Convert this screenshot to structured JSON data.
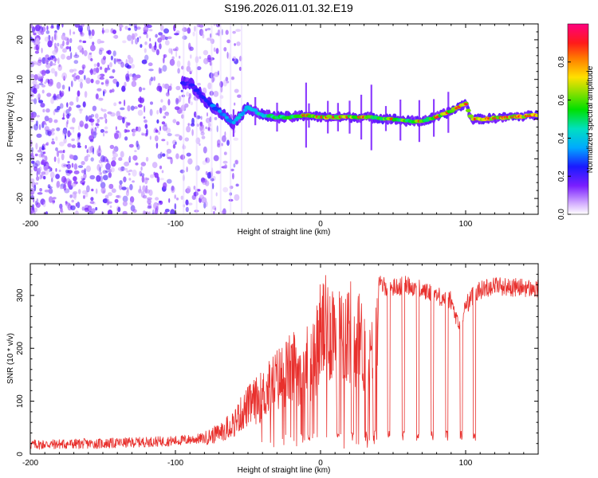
{
  "figure_title": "S196.2026.011.01.32.E19",
  "chart_data": [
    {
      "type": "heatmap",
      "title": "S196.2026.011.01.32.E19",
      "xlabel": "Height of straight line (km)",
      "ylabel": "Frequency (Hz)",
      "xlim": [
        -200,
        150
      ],
      "ylim": [
        -24,
        24
      ],
      "xticks": [
        -200,
        -100,
        0,
        100
      ],
      "yticks": [
        -20,
        -10,
        0,
        10,
        20
      ],
      "colorbar": {
        "label": "Normalized spectral amplitude",
        "range": [
          0,
          1
        ],
        "ticks": [
          0.0,
          0.2,
          0.4,
          0.6,
          0.8
        ],
        "tick_labels": [
          "0.0",
          "0.2",
          "0.4",
          "0.6",
          "0.8"
        ]
      },
      "trace": {
        "x": [
          -90,
          -80,
          -70,
          -60,
          -50,
          -40,
          -30,
          -20,
          -10,
          0,
          10,
          20,
          30,
          40,
          50,
          60,
          70,
          80,
          90,
          100,
          104,
          110,
          130,
          150
        ],
        "freq": [
          9,
          5,
          2,
          -1,
          3,
          1,
          0.5,
          0.5,
          1,
          0.5,
          0.5,
          0.5,
          0.5,
          0.3,
          0,
          -0.5,
          -0.5,
          0.5,
          2,
          4,
          0,
          0,
          0.5,
          1
        ],
        "amplitude": [
          0.3,
          0.35,
          0.45,
          0.5,
          0.55,
          0.6,
          0.7,
          0.75,
          0.8,
          0.85,
          0.85,
          0.85,
          0.85,
          0.8,
          0.8,
          0.8,
          0.8,
          0.85,
          0.85,
          0.9,
          0.95,
          0.95,
          0.95,
          0.95
        ]
      },
      "noise_region": {
        "x_range": [
          -200,
          -55
        ],
        "freq_range": [
          -24,
          24
        ],
        "amplitude": 0.15
      }
    },
    {
      "type": "line",
      "xlabel": "Height of straight line (km)",
      "ylabel": "SNR (10 * v/v)",
      "xlim": [
        -200,
        150
      ],
      "ylim": [
        0,
        360
      ],
      "xticks": [
        -200,
        -100,
        0,
        100
      ],
      "yticks": [
        0,
        100,
        200,
        300
      ],
      "series": [
        {
          "name": "SNR",
          "color": "#e8302d",
          "x": [
            -200,
            -150,
            -100,
            -80,
            -70,
            -60,
            -50,
            -40,
            -30,
            -20,
            -10,
            -5,
            0,
            10,
            20,
            25,
            30,
            35,
            40,
            50,
            60,
            70,
            80,
            90,
            95,
            100,
            105,
            110,
            120,
            130,
            140,
            150
          ],
          "y": [
            18,
            20,
            25,
            30,
            40,
            60,
            90,
            110,
            140,
            160,
            170,
            180,
            230,
            240,
            230,
            220,
            200,
            170,
            320,
            315,
            320,
            310,
            300,
            290,
            240,
            280,
            300,
            310,
            320,
            315,
            315,
            310
          ],
          "dropouts_x": [
            -8,
            12,
            22,
            32,
            37,
            47,
            57,
            67,
            77,
            87,
            97,
            106
          ],
          "dropout_level": 35
        }
      ]
    }
  ]
}
